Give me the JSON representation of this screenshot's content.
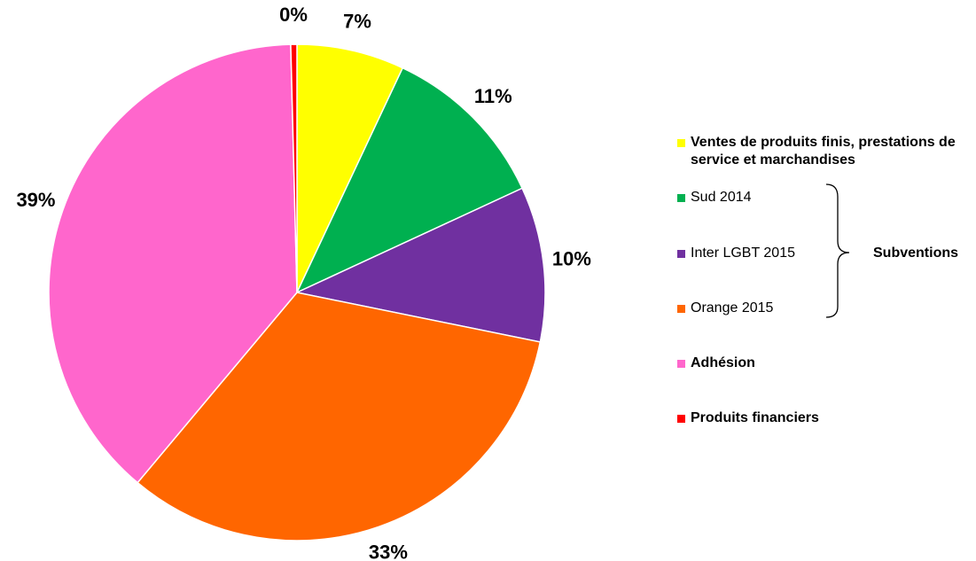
{
  "chart_data": {
    "type": "pie",
    "categories": [
      "Ventes de produits finis, prestations de service et marchandises",
      "Sud 2014",
      "Inter LGBT 2015",
      "Orange 2015",
      "Adhésion",
      "Produits financiers"
    ],
    "values": [
      7,
      11.1,
      10.1,
      32.9,
      38.5,
      0.4
    ],
    "value_labels": [
      "7%",
      "11%",
      "10%",
      "33%",
      "39%",
      "0%"
    ],
    "colors": [
      "#ffff00",
      "#00b050",
      "#7030a0",
      "#ff6600",
      "#ff66cc",
      "#ff0000"
    ],
    "annotation": "Subventions"
  }
}
